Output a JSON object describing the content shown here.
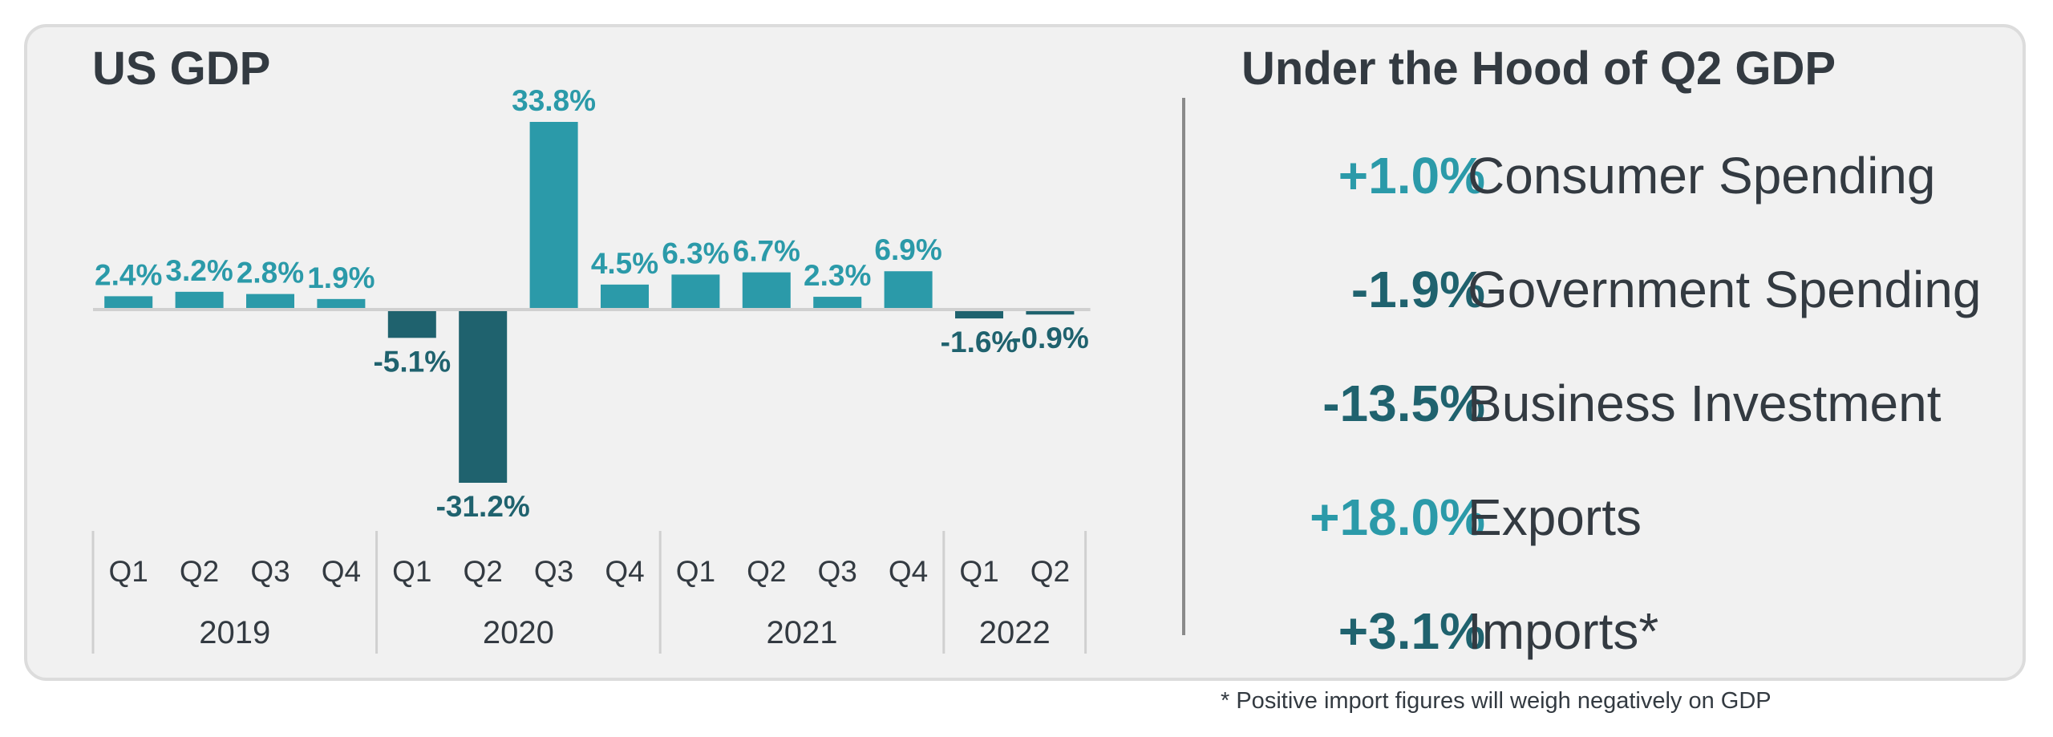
{
  "chart_data": {
    "type": "bar",
    "title": "US GDP",
    "categories": [
      "Q1",
      "Q2",
      "Q3",
      "Q4",
      "Q1",
      "Q2",
      "Q3",
      "Q4",
      "Q1",
      "Q2",
      "Q3",
      "Q4",
      "Q1",
      "Q2"
    ],
    "years": [
      {
        "label": "2019",
        "count": 4
      },
      {
        "label": "2020",
        "count": 4
      },
      {
        "label": "2021",
        "count": 4
      },
      {
        "label": "2022",
        "count": 2
      }
    ],
    "values": [
      2.4,
      3.2,
      2.8,
      1.9,
      -5.1,
      -31.2,
      33.8,
      4.5,
      6.3,
      6.7,
      2.3,
      6.9,
      -1.6,
      -0.9
    ],
    "data_labels": [
      "2.4%",
      "3.2%",
      "2.8%",
      "1.9%",
      "-5.1%",
      "-31.2%",
      "33.8%",
      "4.5%",
      "6.3%",
      "6.7%",
      "2.3%",
      "6.9%",
      "-1.6%",
      "-0.9%"
    ],
    "ylim": [
      -31.2,
      33.8
    ],
    "grid": false,
    "legend": "none",
    "colors": {
      "positive": "#2b9aa9",
      "negative": "#1f626e",
      "axis": "#d0d0d0"
    }
  },
  "panel": {
    "title": "Under the Hood of Q2 GDP",
    "items": [
      {
        "value": "+1.0%",
        "label": "Consumer Spending",
        "color": "#2b9aa9"
      },
      {
        "value": "-1.9%",
        "label": "Government Spending",
        "color": "#1f626e"
      },
      {
        "value": "-13.5%",
        "label": "Business Investment",
        "color": "#1f626e"
      },
      {
        "value": "+18.0%",
        "label": "Exports",
        "color": "#2b9aa9"
      },
      {
        "value": "+3.1%",
        "label": "Imports*",
        "color": "#1f626e"
      }
    ],
    "footnote": "* Positive import figures will weigh negatively on GDP"
  },
  "colors": {
    "text": "#333a41",
    "card_bg": "#f1f1f1"
  }
}
